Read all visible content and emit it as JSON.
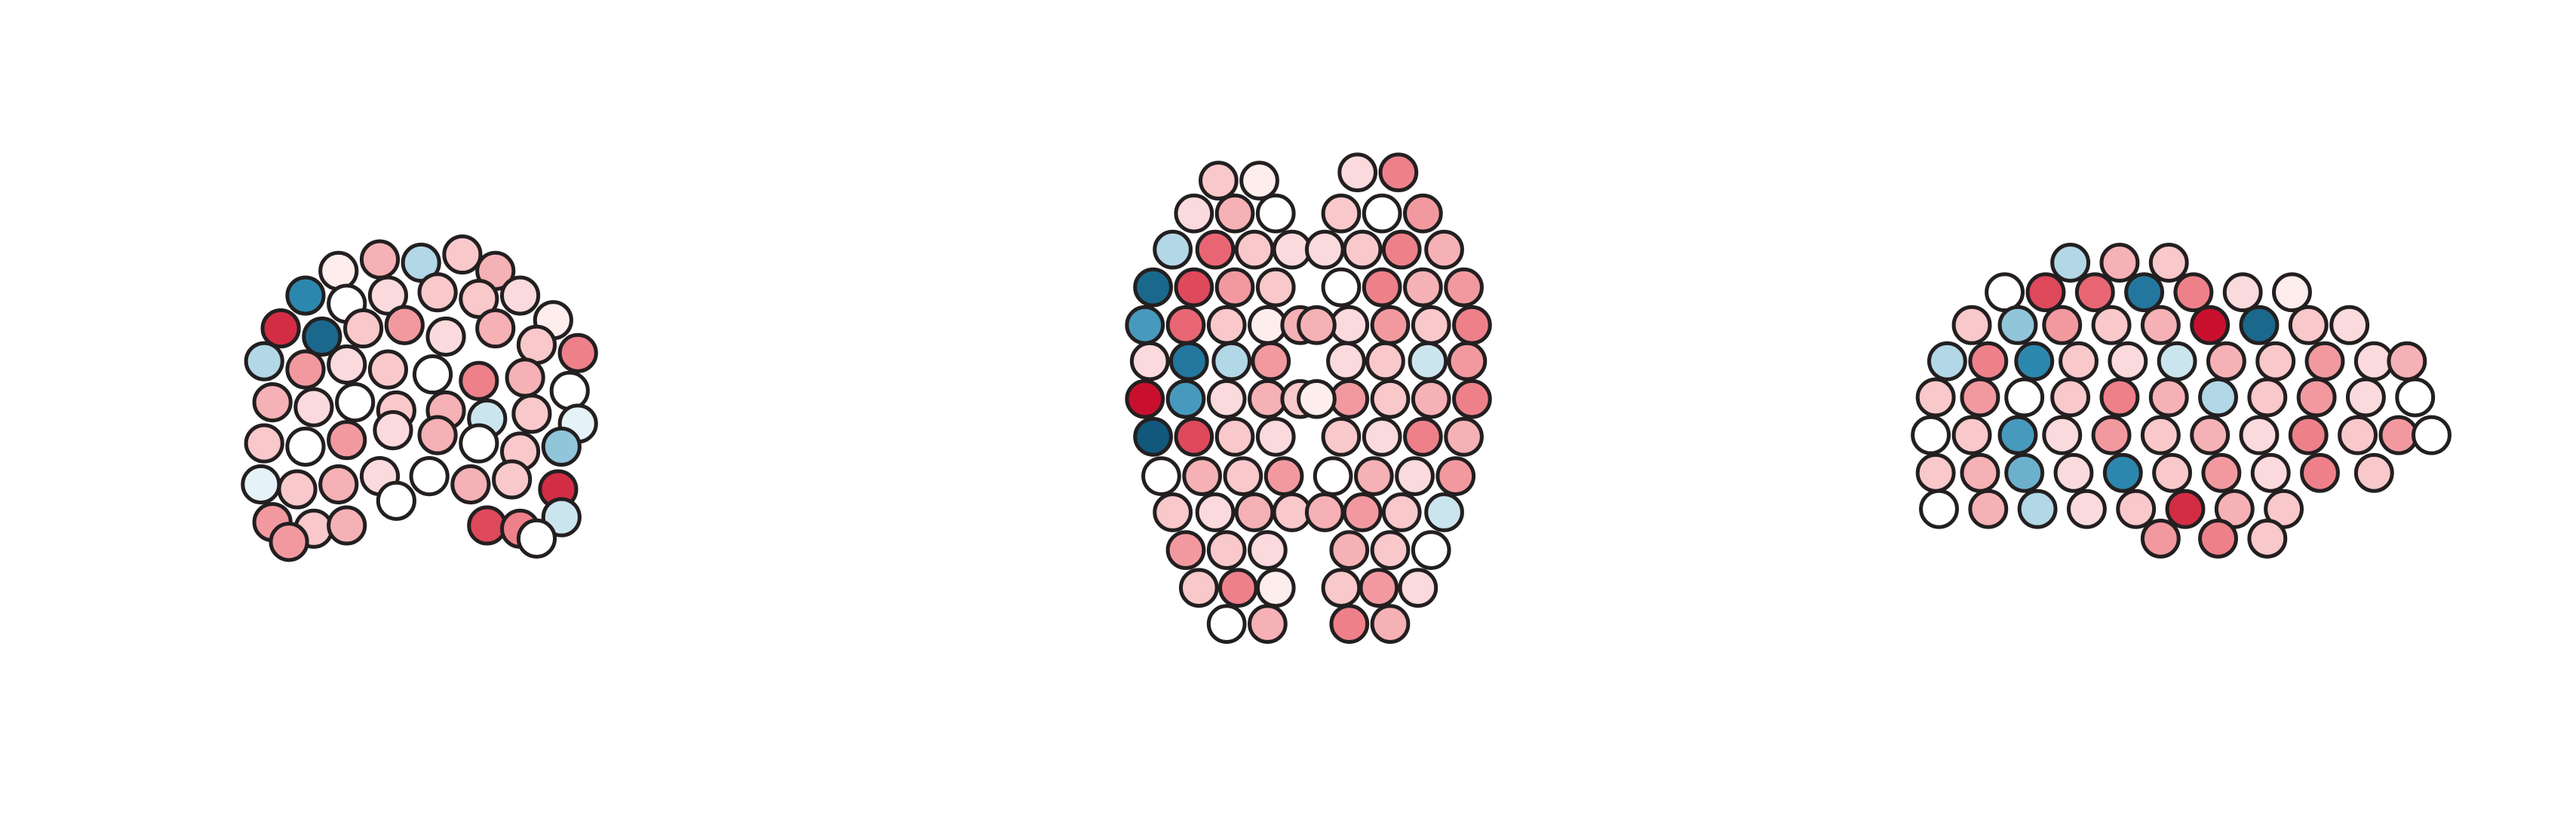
{
  "colormap": {
    "vlim": [
      -1,
      1
    ],
    "colors": [
      "#12587c",
      "#2f8cb4",
      "#a9d3e3",
      "#ffffff",
      "#f7c2c4",
      "#ec6f7b",
      "#c8102e"
    ]
  },
  "chart_data": [
    {
      "type": "scatter",
      "xlim": [
        0,
        520
      ],
      "ylim": [
        500,
        0
      ],
      "x": [
        230,
        255,
        280,
        300,
        205,
        185,
        210,
        235,
        265,
        290,
        315,
        335,
        170,
        195,
        220,
        245,
        270,
        300,
        325,
        350,
        160,
        185,
        210,
        235,
        262,
        290,
        318,
        345,
        165,
        190,
        215,
        240,
        270,
        295,
        322,
        350,
        160,
        185,
        210,
        238,
        265,
        290,
        315,
        340,
        158,
        180,
        205,
        230,
        260,
        285,
        310,
        338,
        165,
        190,
        210,
        240,
        295,
        315,
        340,
        175,
        325
      ],
      "y": [
        158,
        160,
        155,
        165,
        165,
        180,
        185,
        180,
        178,
        182,
        180,
        195,
        200,
        205,
        200,
        198,
        205,
        200,
        210,
        215,
        220,
        225,
        222,
        225,
        228,
        232,
        230,
        238,
        245,
        248,
        245,
        250,
        250,
        255,
        252,
        258,
        270,
        272,
        268,
        262,
        265,
        270,
        275,
        272,
        295,
        298,
        295,
        290,
        290,
        295,
        292,
        298,
        318,
        322,
        320,
        305,
        320,
        322,
        315,
        330,
        328
      ],
      "values": [
        0.4,
        -0.3,
        0.3,
        0.4,
        0.1,
        -0.7,
        0,
        0.2,
        0.3,
        0.3,
        0.2,
        0.1,
        0.9,
        -0.9,
        0.3,
        0.5,
        0.2,
        0.4,
        0.3,
        0.6,
        -0.3,
        0.5,
        0.2,
        0.3,
        0,
        0.6,
        0.4,
        0,
        0.4,
        0.2,
        0,
        0.3,
        0.4,
        -0.2,
        0.3,
        -0.1,
        0.3,
        0,
        0.5,
        0.2,
        0.4,
        0,
        0.3,
        -0.4,
        -0.1,
        0.3,
        0.4,
        0.2,
        0,
        0.4,
        0.3,
        0.9,
        0.5,
        0.3,
        0.4,
        0,
        0.8,
        0.6,
        -0.2,
        0.5,
        0
      ]
    },
    {
      "type": "scatter",
      "xlim": [
        520,
        1045
      ],
      "ylim": [
        500,
        0
      ],
      "x": [
        740,
        765,
        725,
        750,
        775,
        712,
        738,
        762,
        785,
        700,
        725,
        750,
        775,
        695,
        720,
        745,
        770,
        790,
        698,
        722,
        748,
        772,
        695,
        720,
        745,
        770,
        790,
        700,
        725,
        750,
        775,
        705,
        730,
        755,
        780,
        712,
        738,
        762,
        785,
        720,
        745,
        770,
        728,
        752,
        775,
        745,
        770,
        850,
        825,
        865,
        840,
        815,
        878,
        852,
        828,
        805,
        890,
        865,
        840,
        815,
        895,
        870,
        845,
        820,
        800,
        892,
        868,
        842,
        818,
        895,
        870,
        845,
        820,
        800,
        890,
        865,
        840,
        815,
        885,
        860,
        835,
        810,
        878,
        852,
        828,
        805,
        870,
        845,
        820,
        862,
        838,
        815,
        845,
        820
      ],
      "y": [
        110,
        110,
        130,
        130,
        130,
        152,
        152,
        152,
        152,
        175,
        175,
        175,
        175,
        198,
        198,
        198,
        198,
        198,
        220,
        220,
        220,
        220,
        243,
        243,
        243,
        243,
        243,
        266,
        266,
        266,
        266,
        290,
        290,
        290,
        290,
        312,
        312,
        312,
        312,
        335,
        335,
        335,
        358,
        358,
        358,
        380,
        380,
        105,
        105,
        130,
        130,
        130,
        152,
        152,
        152,
        152,
        175,
        175,
        175,
        175,
        198,
        198,
        198,
        198,
        198,
        220,
        220,
        220,
        220,
        243,
        243,
        243,
        243,
        243,
        266,
        266,
        266,
        266,
        290,
        290,
        290,
        290,
        312,
        312,
        312,
        312,
        335,
        335,
        335,
        358,
        358,
        358,
        380,
        380
      ],
      "values": [
        0.3,
        0.1,
        0.2,
        0.4,
        0,
        -0.3,
        0.7,
        0.3,
        0.2,
        -0.9,
        0.8,
        0.5,
        0.3,
        -0.6,
        0.7,
        0.3,
        0.1,
        0.4,
        0.2,
        -0.8,
        -0.3,
        0.5,
        1,
        -0.6,
        0.2,
        0.4,
        0.3,
        -1,
        0.8,
        0.3,
        0.2,
        0,
        0.4,
        0.3,
        0.5,
        0.3,
        0.2,
        0.4,
        0.3,
        0.5,
        0.3,
        0.2,
        0.3,
        0.6,
        0.1,
        0,
        0.4,
        0.6,
        0.2,
        0.5,
        0,
        0.3,
        0.4,
        0.6,
        0.3,
        0.2,
        0.5,
        0.4,
        0.6,
        0,
        0.6,
        0.3,
        0.5,
        0.2,
        0.4,
        0.5,
        -0.2,
        0.3,
        0.2,
        0.6,
        0.4,
        0.3,
        0.5,
        0.1,
        0.4,
        0.6,
        0.2,
        0.3,
        0.5,
        0.2,
        0.4,
        0,
        -0.2,
        0.3,
        0.5,
        0.4,
        0,
        0.3,
        0.4,
        0.2,
        0.5,
        0.3,
        0.4,
        0.6
      ]
    },
    {
      "type": "scatter",
      "xlim": [
        1045,
        1568
      ],
      "ylim": [
        500,
        0
      ],
      "x": [
        1260,
        1290,
        1320,
        1220,
        1245,
        1275,
        1305,
        1335,
        1365,
        1395,
        1200,
        1228,
        1255,
        1285,
        1315,
        1345,
        1375,
        1405,
        1430,
        1185,
        1210,
        1238,
        1265,
        1295,
        1325,
        1355,
        1385,
        1415,
        1445,
        1465,
        1178,
        1205,
        1232,
        1260,
        1290,
        1320,
        1350,
        1380,
        1410,
        1440,
        1470,
        1175,
        1200,
        1228,
        1255,
        1285,
        1315,
        1345,
        1375,
        1405,
        1435,
        1460,
        1480,
        1178,
        1205,
        1232,
        1262,
        1292,
        1322,
        1352,
        1382,
        1412,
        1445,
        1180,
        1210,
        1240,
        1270,
        1300,
        1330,
        1360,
        1390,
        1315,
        1350,
        1380
      ],
      "y": [
        160,
        160,
        160,
        178,
        178,
        178,
        178,
        178,
        178,
        178,
        198,
        198,
        198,
        198,
        198,
        198,
        198,
        198,
        198,
        220,
        220,
        220,
        220,
        220,
        220,
        220,
        220,
        220,
        220,
        220,
        242,
        242,
        242,
        242,
        242,
        242,
        242,
        242,
        242,
        242,
        242,
        265,
        265,
        265,
        265,
        265,
        265,
        265,
        265,
        265,
        265,
        265,
        265,
        288,
        288,
        288,
        288,
        288,
        288,
        288,
        288,
        288,
        288,
        310,
        310,
        310,
        310,
        310,
        310,
        310,
        310,
        328,
        328,
        328
      ],
      "values": [
        -0.3,
        0.4,
        0.3,
        0,
        0.8,
        0.7,
        -0.8,
        0.6,
        0.2,
        0.1,
        0.3,
        -0.4,
        0.5,
        0.3,
        0.4,
        1,
        -0.9,
        0.3,
        0.2,
        -0.3,
        0.6,
        -0.7,
        0.3,
        0.2,
        -0.2,
        0.4,
        0.3,
        0.5,
        0.2,
        0.4,
        0.3,
        0.5,
        0,
        0.3,
        0.6,
        0.4,
        -0.3,
        0.3,
        0.5,
        0.2,
        0,
        0,
        0.3,
        -0.6,
        0.2,
        0.5,
        0.3,
        0.4,
        0.2,
        0.6,
        0.3,
        0.5,
        0,
        0.3,
        0.4,
        -0.5,
        0.2,
        -0.7,
        0.3,
        0.5,
        0.2,
        0.6,
        0.3,
        0,
        0.4,
        -0.3,
        0.2,
        0.3,
        0.9,
        0.4,
        0.3,
        0.5,
        0.6,
        0.3
      ]
    }
  ]
}
